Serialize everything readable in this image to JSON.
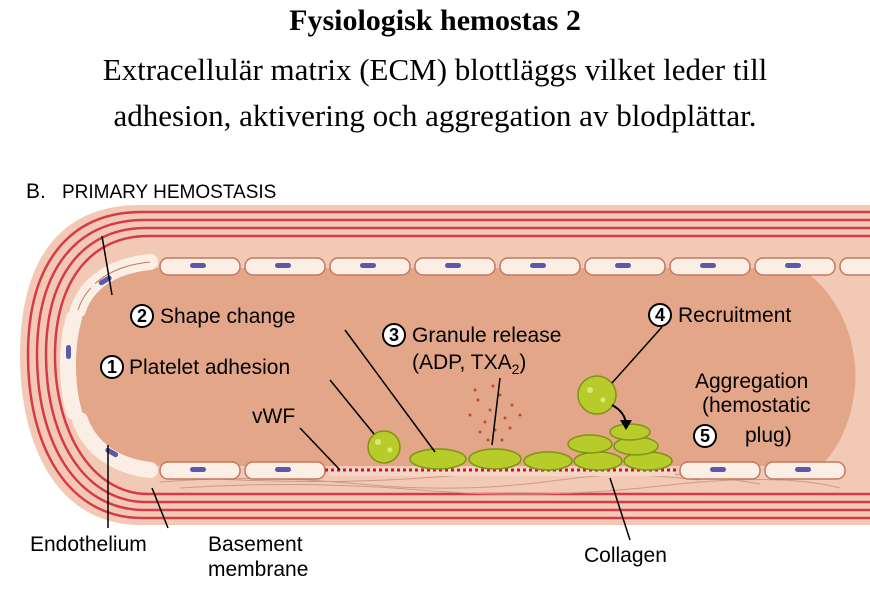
{
  "header": {
    "title": "Fysiologisk hemostas 2",
    "subtitle_line1": "Extracellulär matrix (ECM) blottläggs vilket leder till",
    "subtitle_line2": "adhesion, aktivering och aggregation av blodplättar."
  },
  "figure": {
    "panel_label": "B.",
    "panel_title": "PRIMARY HEMOSTASIS",
    "steps": [
      {
        "number": "1",
        "label": "Platelet adhesion"
      },
      {
        "number": "2",
        "label": "Shape change"
      },
      {
        "number": "3",
        "label": "Granule release",
        "sublabel_prefix": "(ADP, TXA",
        "sublabel_subscript": "2",
        "sublabel_suffix": ")"
      },
      {
        "number": "4",
        "label": "Recruitment"
      },
      {
        "number": "5",
        "label_line1": "Aggregation",
        "label_line2": "(hemostatic",
        "label_line3": "plug)"
      }
    ],
    "structures": {
      "vwf": "vWF",
      "endothelium": "Endothelium",
      "basement_line1": "Basement",
      "basement_line2": "membrane",
      "collagen": "Collagen"
    }
  },
  "colors": {
    "wall_light": "#f2c9b4",
    "wall_stripe": "#d63a4a",
    "lumen": "#e3a688",
    "cell_fill": "#fbeee4",
    "nucleus": "#5c5aa8",
    "platelet": "#b7cc2a",
    "platelet_dark": "#7f9412",
    "vwf": "#cc1133"
  }
}
